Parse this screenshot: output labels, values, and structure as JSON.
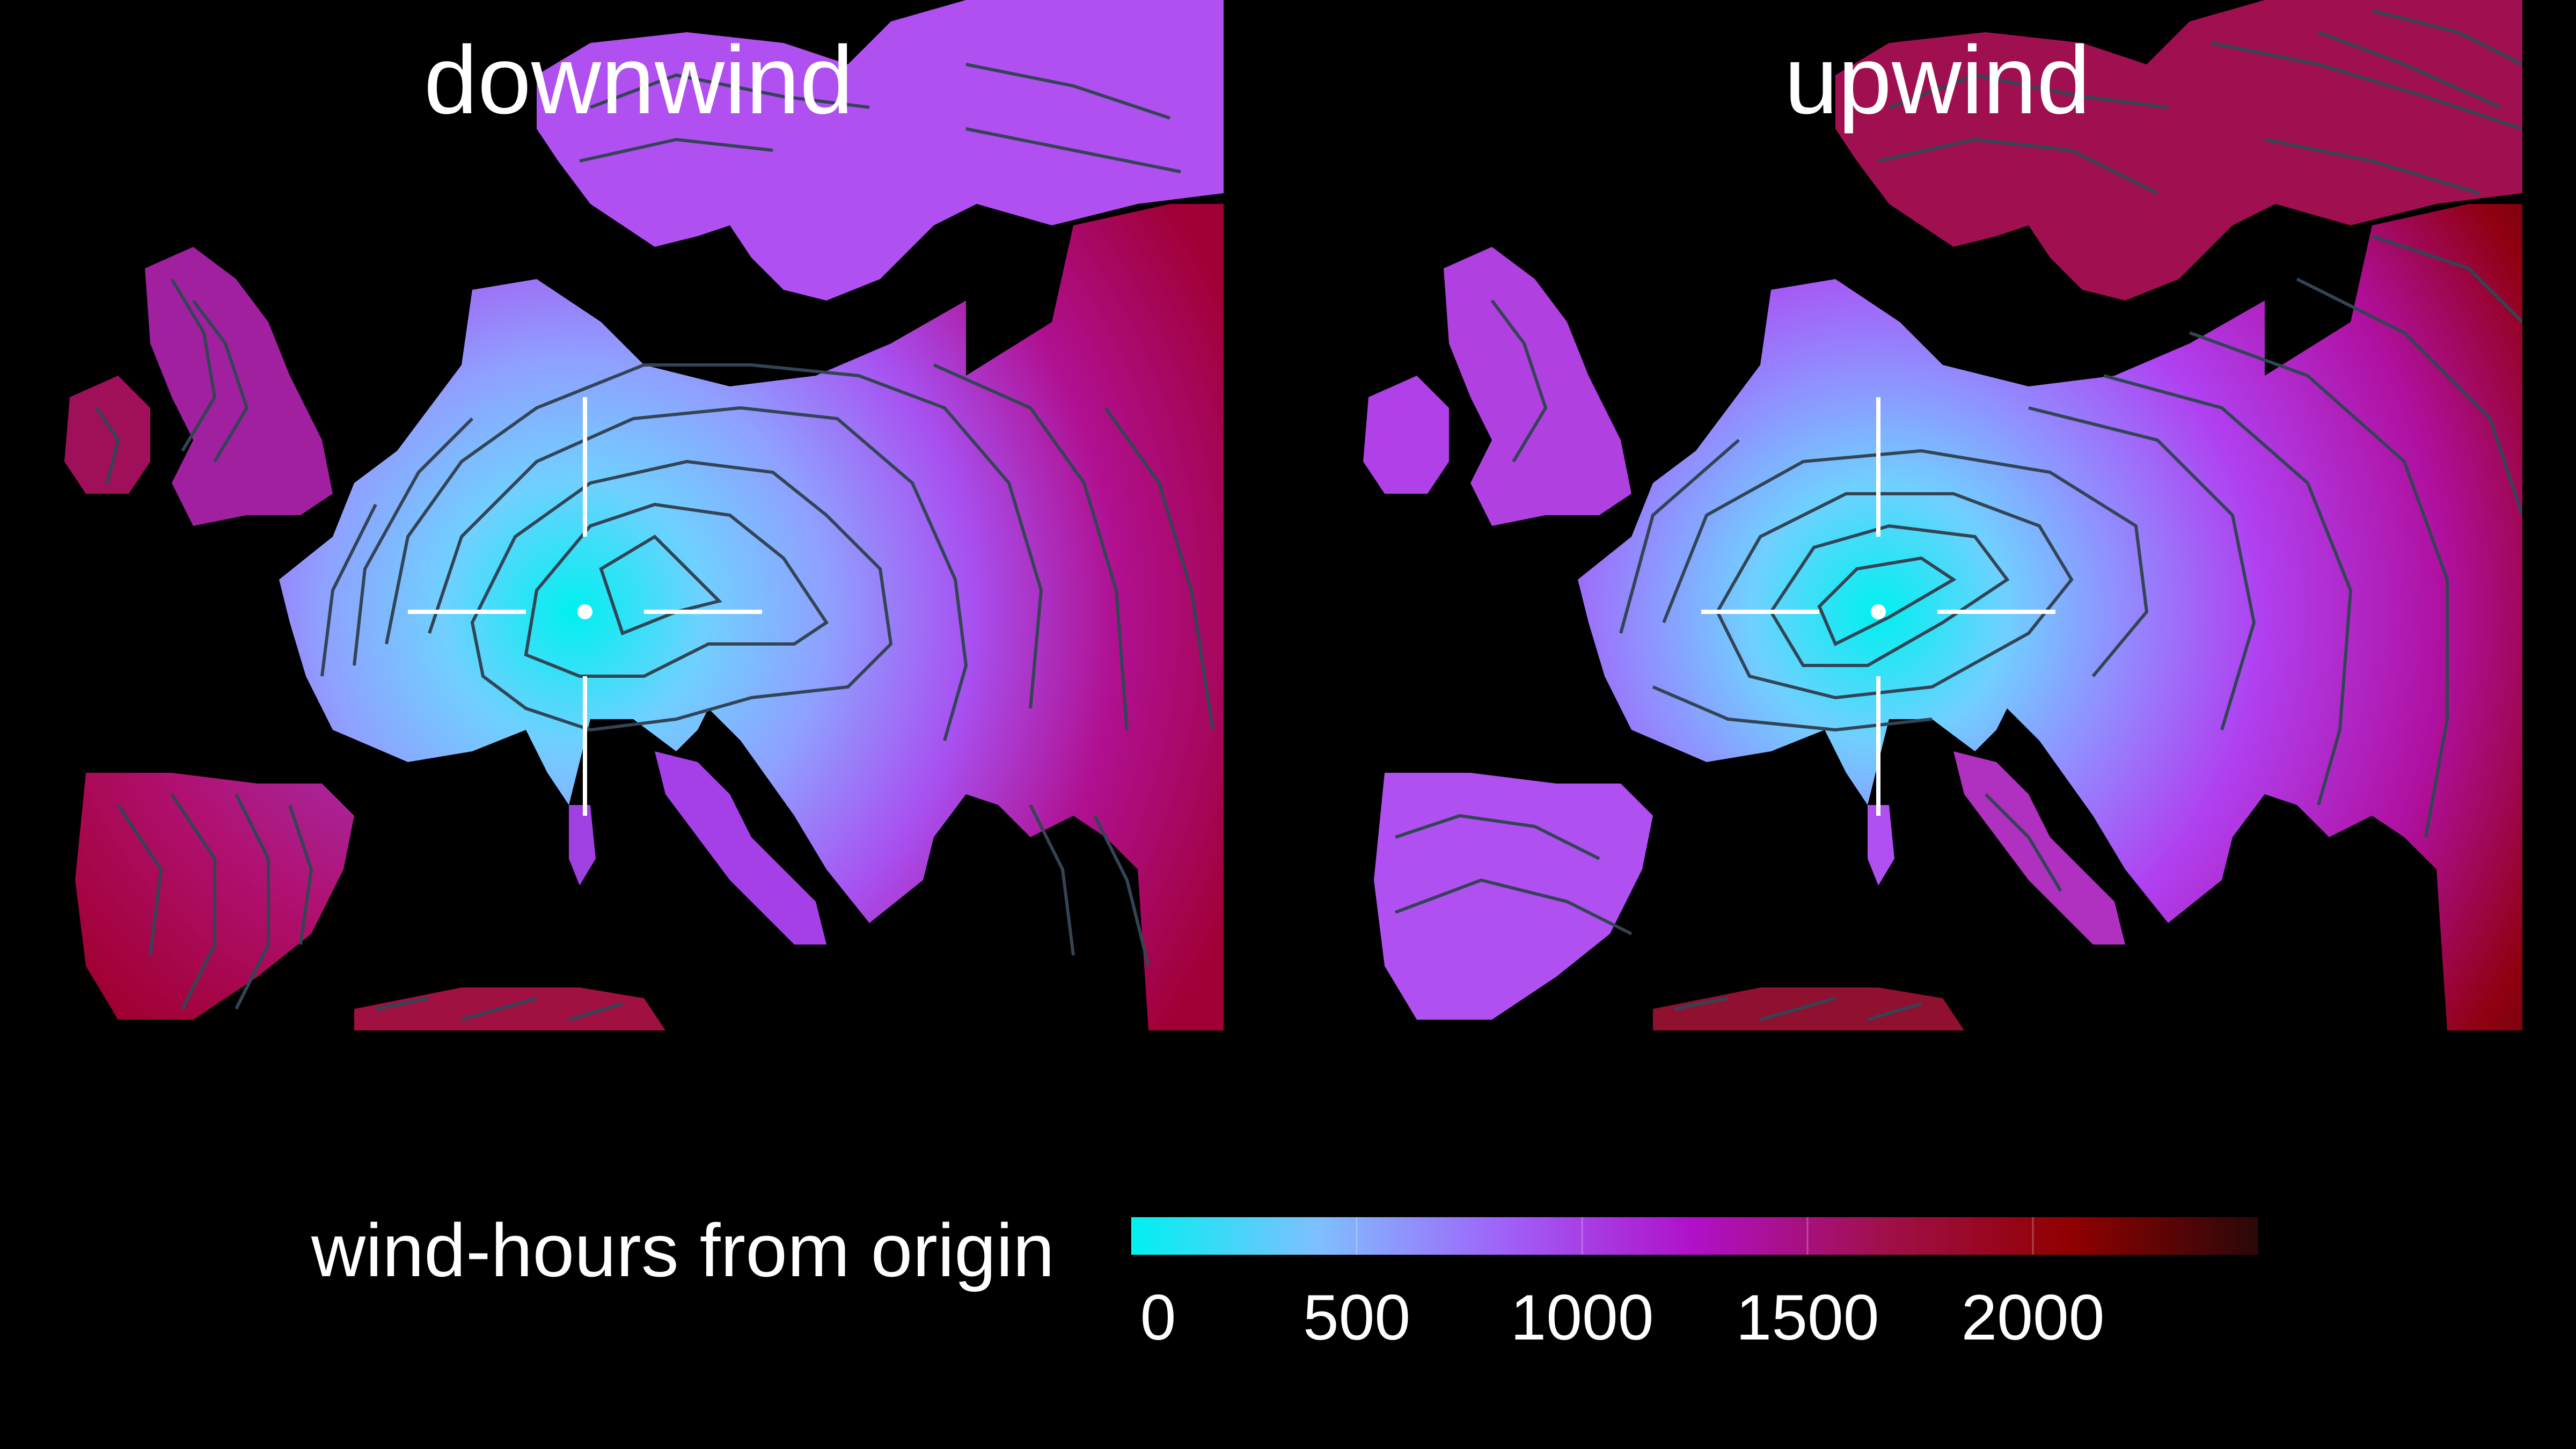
{
  "panels": [
    {
      "id": "downwind",
      "title": "downwind"
    },
    {
      "id": "upwind",
      "title": "upwind"
    }
  ],
  "legend": {
    "title": "wind-hours from origin",
    "ticks": [
      "0",
      "500",
      "1000",
      "1500",
      "2000"
    ],
    "tick_values": [
      0,
      500,
      1000,
      1500,
      2000
    ],
    "range": [
      0,
      2500
    ],
    "gradient": [
      "#00f0f0",
      "#7fbfff",
      "#a060f8",
      "#b010c8",
      "#a0104a",
      "#900000",
      "#2a0808"
    ]
  },
  "colors": {
    "background": "#000000",
    "contour": "#334455",
    "crosshair": "#ffffff",
    "land_low": "#00f0f0",
    "land_mid": "#b040f0",
    "land_high": "#a00030"
  }
}
